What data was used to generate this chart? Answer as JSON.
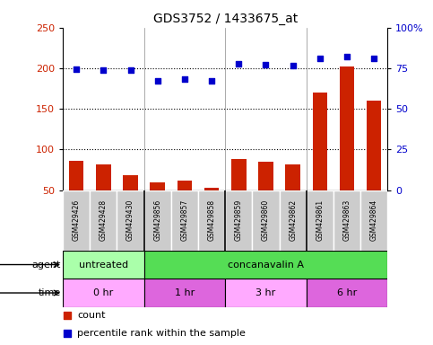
{
  "title": "GDS3752 / 1433675_at",
  "samples": [
    "GSM429426",
    "GSM429428",
    "GSM429430",
    "GSM429856",
    "GSM429857",
    "GSM429858",
    "GSM429859",
    "GSM429860",
    "GSM429862",
    "GSM429861",
    "GSM429863",
    "GSM429864"
  ],
  "counts": [
    86,
    82,
    68,
    59,
    62,
    53,
    88,
    85,
    82,
    170,
    202,
    160
  ],
  "percentile_pct": [
    74.6,
    73.9,
    73.9,
    67.0,
    68.3,
    67.0,
    77.5,
    77.0,
    76.5,
    81.0,
    82.0,
    81.0
  ],
  "bar_color": "#cc2200",
  "dot_color": "#0000cc",
  "agent_labels": [
    {
      "text": "untreated",
      "start": 0,
      "end": 3,
      "color": "#aaffaa"
    },
    {
      "text": "concanavalin A",
      "start": 3,
      "end": 12,
      "color": "#55dd55"
    }
  ],
  "time_labels": [
    {
      "text": "0 hr",
      "start": 0,
      "end": 3,
      "color": "#ffaaff"
    },
    {
      "text": "1 hr",
      "start": 3,
      "end": 6,
      "color": "#dd66dd"
    },
    {
      "text": "3 hr",
      "start": 6,
      "end": 9,
      "color": "#ffaaff"
    },
    {
      "text": "6 hr",
      "start": 9,
      "end": 12,
      "color": "#dd66dd"
    }
  ],
  "legend_count_color": "#cc2200",
  "legend_pct_color": "#0000cc",
  "sample_box_color": "#cccccc",
  "left_ylim": [
    50,
    250
  ],
  "left_yticks": [
    50,
    100,
    150,
    200,
    250
  ],
  "right_ylim": [
    0,
    100
  ],
  "right_yticks": [
    0,
    25,
    50,
    75,
    100
  ],
  "hgrid_vals": [
    100,
    150,
    200
  ]
}
